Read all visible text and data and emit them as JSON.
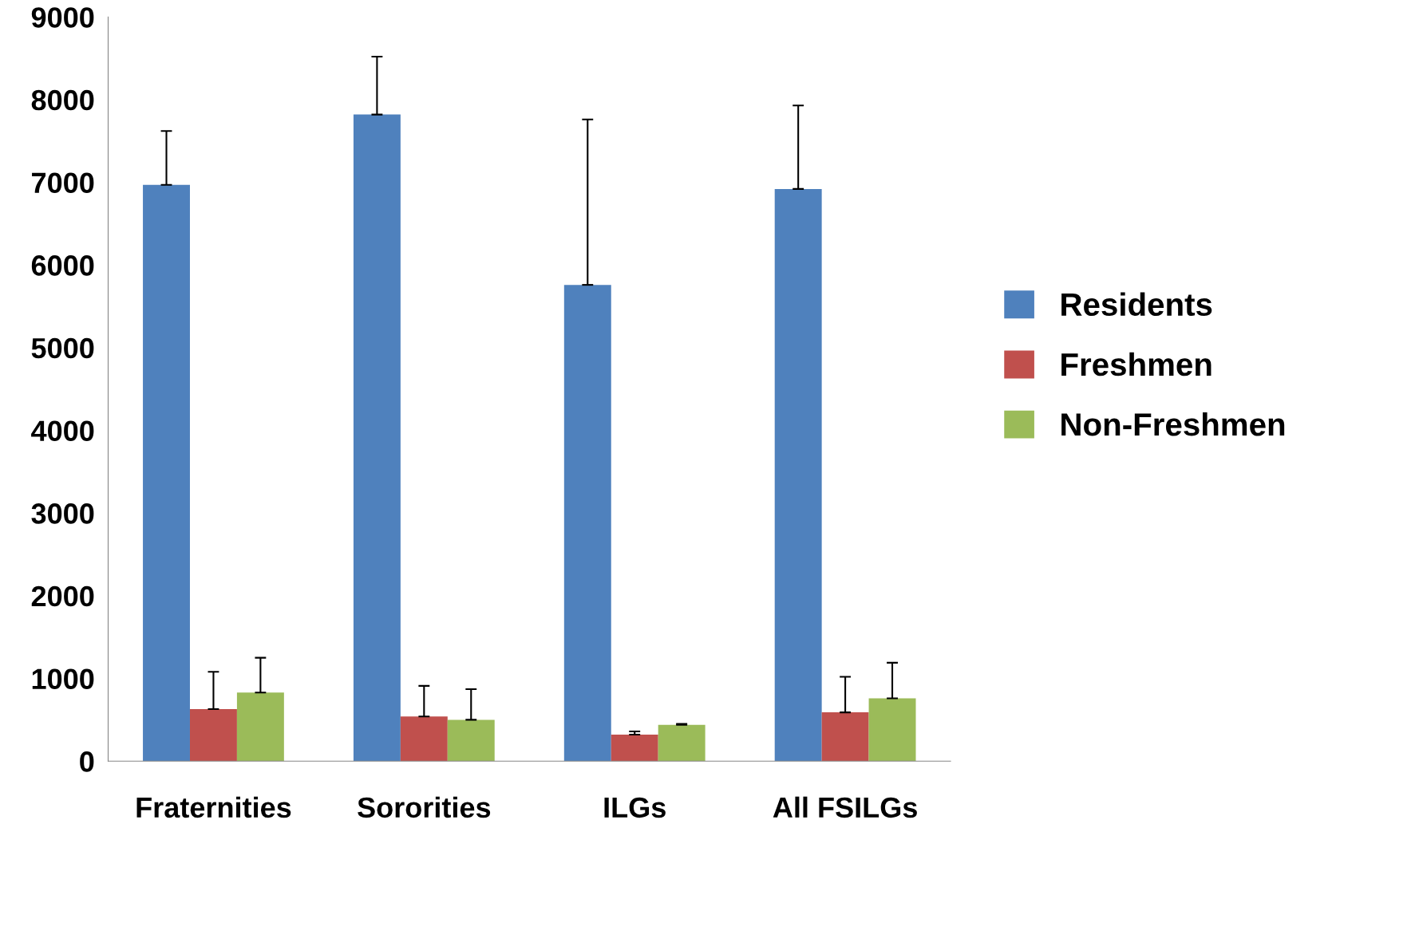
{
  "chart_data": {
    "type": "bar",
    "categories": [
      "Fraternities",
      "Sororities",
      "ILGs",
      "All FSILGs"
    ],
    "series": [
      {
        "name": "Residents",
        "color": "#4f81bd",
        "values": [
          6970,
          7820,
          5760,
          6920
        ],
        "errors": [
          [
            6970,
            7620
          ],
          [
            7820,
            8520
          ],
          [
            5760,
            7760
          ],
          [
            6920,
            7930
          ]
        ]
      },
      {
        "name": "Freshmen",
        "color": "#c0504d",
        "values": [
          630,
          540,
          320,
          590
        ],
        "errors": [
          [
            630,
            1080
          ],
          [
            540,
            910
          ],
          [
            320,
            360
          ],
          [
            590,
            1020
          ]
        ]
      },
      {
        "name": "Non-Freshmen",
        "color": "#9bbb59",
        "values": [
          830,
          500,
          440,
          760
        ],
        "errors": [
          [
            830,
            1250
          ],
          [
            500,
            870
          ],
          [
            440,
            450
          ],
          [
            760,
            1190
          ]
        ]
      }
    ],
    "ylim": [
      0,
      9000
    ],
    "yticks": [
      0,
      1000,
      2000,
      3000,
      4000,
      5000,
      6000,
      7000,
      8000,
      9000
    ],
    "grid": false,
    "legend": "right"
  }
}
